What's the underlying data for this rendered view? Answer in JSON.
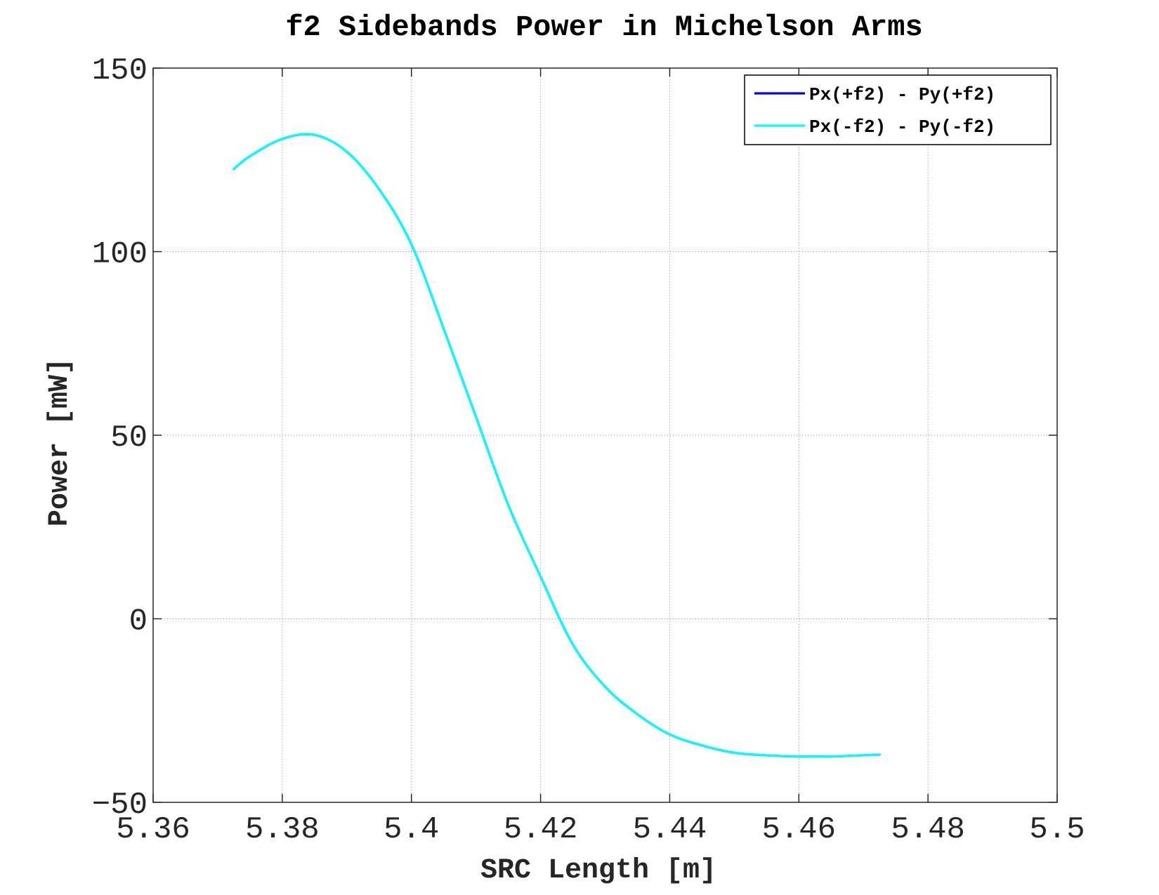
{
  "chart_data": {
    "type": "line",
    "title": "f2 Sidebands Power in Michelson Arms",
    "xlabel": "SRC Length [m]",
    "ylabel": "Power [mW]",
    "xlim": [
      5.36,
      5.5
    ],
    "ylim": [
      -50,
      150
    ],
    "xticks": [
      5.36,
      5.38,
      5.4,
      5.42,
      5.44,
      5.46,
      5.48,
      5.5
    ],
    "xtick_labels": [
      "5.36",
      "5.38",
      "5.4",
      "5.42",
      "5.44",
      "5.46",
      "5.48",
      "5.5"
    ],
    "yticks": [
      -50,
      0,
      50,
      100,
      150
    ],
    "ytick_labels": [
      "−50",
      "0",
      "50",
      "100",
      "150"
    ],
    "grid": true,
    "legend_position": "top-right",
    "series": [
      {
        "name": "Px(+f2) - Py(+f2)",
        "color": "#0000ff",
        "x": [
          5.3725,
          5.375,
          5.38,
          5.385,
          5.39,
          5.395,
          5.4,
          5.405,
          5.41,
          5.415,
          5.42,
          5.425,
          5.43,
          5.435,
          5.44,
          5.445,
          5.45,
          5.455,
          5.46,
          5.465,
          5.4725
        ],
        "y": [
          122.5,
          126,
          130.7,
          131.8,
          127.2,
          117,
          102,
          79,
          55,
          31,
          11.5,
          -7,
          -18.5,
          -26,
          -31.5,
          -34.5,
          -36.5,
          -37.2,
          -37.5,
          -37.5,
          -37
        ]
      },
      {
        "name": "Px(-f2) - Py(-f2)",
        "color": "#00ffff",
        "x": [
          5.3725,
          5.375,
          5.38,
          5.385,
          5.39,
          5.395,
          5.4,
          5.405,
          5.41,
          5.415,
          5.42,
          5.425,
          5.43,
          5.435,
          5.44,
          5.445,
          5.45,
          5.455,
          5.46,
          5.465,
          5.4725
        ],
        "y": [
          122.5,
          126,
          130.7,
          131.8,
          127.2,
          117,
          102,
          79,
          55,
          31,
          11.5,
          -7,
          -18.5,
          -26,
          -31.5,
          -34.5,
          -36.5,
          -37.2,
          -37.5,
          -37.5,
          -37
        ]
      }
    ]
  }
}
